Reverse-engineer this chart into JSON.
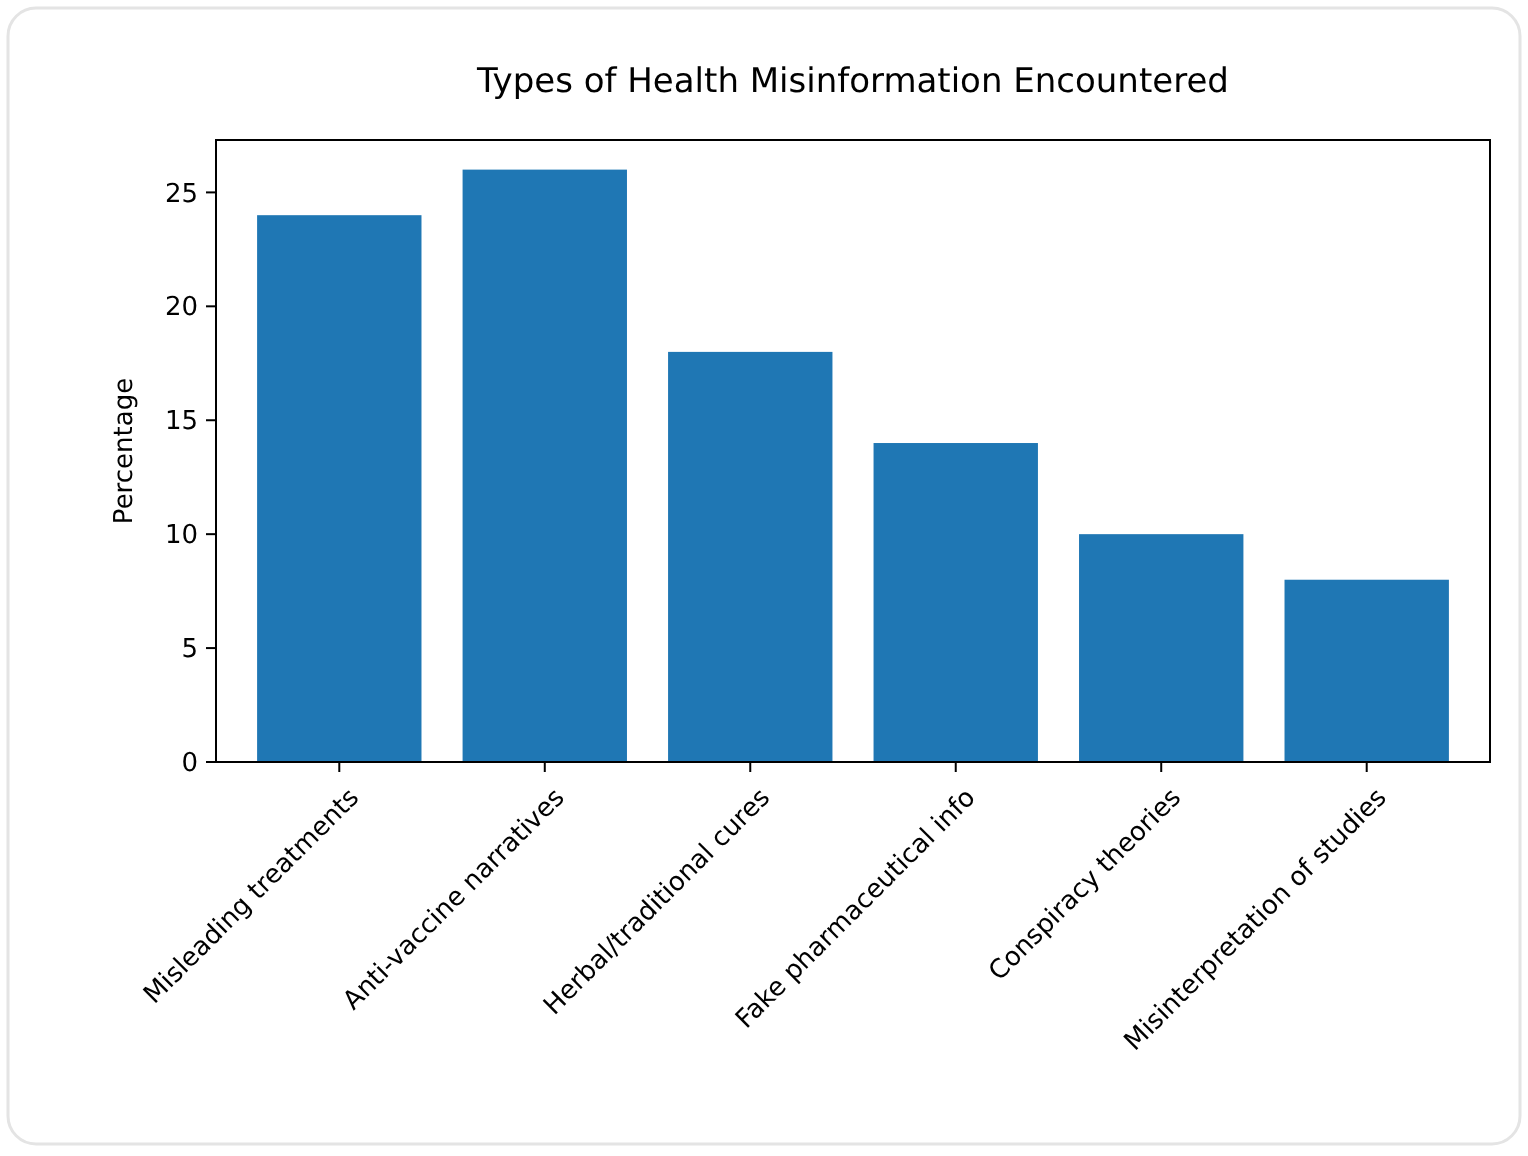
{
  "chart_data": {
    "type": "bar",
    "title": "Types of Health Misinformation Encountered",
    "ylabel": "Percentage",
    "categories": [
      "Misleading treatments",
      "Anti-vaccine narratives",
      "Herbal/traditional cures",
      "Fake pharmaceutical info",
      "Conspiracy theories",
      "Misinterpretation of studies"
    ],
    "values": [
      24,
      26,
      18,
      14,
      10,
      8
    ],
    "color": "#1f77b4",
    "ylim": [
      0,
      27.3
    ],
    "yticks": [
      0,
      5,
      10,
      15,
      20,
      25
    ]
  }
}
